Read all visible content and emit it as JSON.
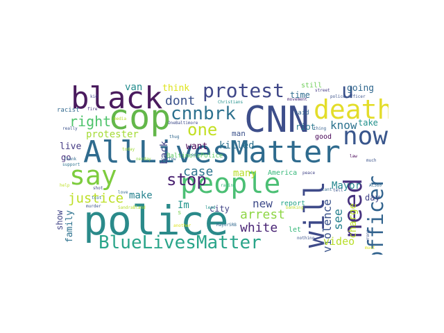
{
  "words": [
    {
      "id": "alllivesmatter",
      "text": "AllLivesMatter",
      "color": "#2f6b8e"
    },
    {
      "id": "police",
      "text": "police",
      "color": "#2a8a8a"
    },
    {
      "id": "cnn",
      "text": "CNN",
      "color": "#3d4e8a"
    },
    {
      "id": "cop",
      "text": "cop",
      "color": "#63b74a"
    },
    {
      "id": "black",
      "text": "black",
      "color": "#4a1b5e"
    },
    {
      "id": "people",
      "text": "people",
      "color": "#4bbf74"
    },
    {
      "id": "death",
      "text": "death",
      "color": "#e3dd2a"
    },
    {
      "id": "say",
      "text": "say",
      "color": "#7dcc3e"
    },
    {
      "id": "now",
      "text": "now",
      "color": "#39568c"
    },
    {
      "id": "will",
      "text": "will",
      "color": "#3e4a89"
    },
    {
      "id": "need",
      "text": "need",
      "color": "#46327e"
    },
    {
      "id": "officer",
      "text": "officer",
      "color": "#30628d"
    },
    {
      "id": "bluelivesmatter",
      "text": "BlueLivesMatter",
      "color": "#2aa58a"
    },
    {
      "id": "protest",
      "text": "protest",
      "color": "#3f4788"
    },
    {
      "id": "cnnbrk",
      "text": "cnnbrk",
      "color": "#2d718e"
    },
    {
      "id": "u",
      "text": "u",
      "color": "#3b528b"
    },
    {
      "id": "stop",
      "text": "stop",
      "color": "#481f70"
    },
    {
      "id": "one",
      "text": "one",
      "color": "#c2df23"
    },
    {
      "id": "right",
      "text": "right",
      "color": "#4ec36b"
    },
    {
      "id": "dont",
      "text": "dont",
      "color": "#3b528b"
    },
    {
      "id": "case",
      "text": "case",
      "color": "#2c738e"
    },
    {
      "id": "justice",
      "text": "justice",
      "color": "#bddf26"
    },
    {
      "id": "arrest",
      "text": "arrest",
      "color": "#8ed645"
    },
    {
      "id": "white",
      "text": "white",
      "color": "#482374"
    },
    {
      "id": "new",
      "text": "new",
      "color": "#3e4a89"
    },
    {
      "id": "see",
      "text": "see",
      "color": "#26818e"
    },
    {
      "id": "know",
      "text": "know",
      "color": "#2c728e"
    },
    {
      "id": "violence",
      "text": "violence",
      "color": "#3a538b"
    },
    {
      "id": "charge",
      "text": "charge",
      "color": "#bddf26"
    },
    {
      "id": "video",
      "text": "video",
      "color": "#b8de29"
    },
    {
      "id": "mayor",
      "text": "Mayor",
      "color": "#24868e"
    },
    {
      "id": "protester",
      "text": "protester",
      "color": "#a5db36"
    },
    {
      "id": "make",
      "text": "make",
      "color": "#26828e"
    },
    {
      "id": "im",
      "text": "Im",
      "color": "#1f948c"
    },
    {
      "id": "killed",
      "text": "killed",
      "color": "#2c728e"
    },
    {
      "id": "many",
      "text": "many",
      "color": "#b8de29"
    },
    {
      "id": "back",
      "text": "back",
      "color": "#414487"
    },
    {
      "id": "want",
      "text": "want",
      "color": "#440154"
    },
    {
      "id": "live",
      "text": "live",
      "color": "#443a83"
    },
    {
      "id": "go",
      "text": "go",
      "color": "#472c7a"
    },
    {
      "id": "city",
      "text": "city",
      "color": "#414487"
    },
    {
      "id": "family",
      "text": "family",
      "color": "#2c718e"
    },
    {
      "id": "show",
      "text": "show",
      "color": "#414487"
    },
    {
      "id": "van",
      "text": "van",
      "color": "#228c8d"
    },
    {
      "id": "think",
      "text": "think",
      "color": "#dde318"
    },
    {
      "id": "time",
      "text": "time",
      "color": "#2f6c8e"
    },
    {
      "id": "going",
      "text": "going",
      "color": "#31688e"
    },
    {
      "id": "take",
      "text": "take",
      "color": "#21918c"
    },
    {
      "id": "day",
      "text": "day",
      "color": "#414487"
    },
    {
      "id": "riot",
      "text": "riot",
      "color": "#2a788e"
    },
    {
      "id": "man",
      "text": "man",
      "color": "#3b528b"
    },
    {
      "id": "good",
      "text": "good",
      "color": "#440154"
    },
    {
      "id": "report",
      "text": "report",
      "color": "#20a386"
    },
    {
      "id": "let",
      "text": "let",
      "color": "#35b779"
    },
    {
      "id": "america",
      "text": "America",
      "color": "#35b779"
    },
    {
      "id": "said",
      "text": "said",
      "color": "#33638d"
    },
    {
      "id": "still",
      "text": "still",
      "color": "#6ece58"
    },
    {
      "id": "racist",
      "text": "racist",
      "color": "#31688e"
    },
    {
      "id": "baltimorepolice",
      "text": "BaltimorePolice",
      "color": "#5ec962"
    },
    {
      "id": "onebaltimore",
      "text": "OneBaltimore",
      "color": "#3e4a89"
    },
    {
      "id": "police_officer",
      "text": "police officer",
      "color": "#3b528b"
    },
    {
      "id": "street",
      "text": "street",
      "color": "#443983"
    },
    {
      "id": "ac360",
      "text": "AC360",
      "color": "#31688e"
    },
    {
      "id": "thing",
      "text": "thing",
      "color": "#35608d"
    },
    {
      "id": "tell",
      "text": "tell",
      "color": "#3b528b"
    },
    {
      "id": "s",
      "text": "s",
      "color": "#7ad151"
    },
    {
      "id": "kid",
      "text": "kid",
      "color": "#414487"
    },
    {
      "id": "fire",
      "text": "fire",
      "color": "#472d7b"
    },
    {
      "id": "really",
      "text": "really",
      "color": "#3b528b"
    },
    {
      "id": "support",
      "text": "support",
      "color": "#2c728e"
    },
    {
      "id": "thank",
      "text": "Thank",
      "color": "#31688e"
    },
    {
      "id": "murder",
      "text": "murder",
      "color": "#3b528b"
    },
    {
      "id": "shot",
      "text": "shot",
      "color": "#404688"
    },
    {
      "id": "tcot",
      "text": "tcot",
      "color": "#2c728e"
    },
    {
      "id": "love",
      "text": "love",
      "color": "#31688e"
    },
    {
      "id": "curfew",
      "text": "curfew",
      "color": "#31688e"
    },
    {
      "id": "peace",
      "text": "peace",
      "color": "#414487"
    },
    {
      "id": "much",
      "text": "much",
      "color": "#3b528b"
    },
    {
      "id": "law",
      "text": "law",
      "color": "#440154"
    },
    {
      "id": "nothing",
      "text": "nothing",
      "color": "#3b528b"
    },
    {
      "id": "cant",
      "text": "cant",
      "color": "#31688e"
    },
    {
      "id": "wrong",
      "text": "wrong",
      "color": "#3b528b"
    },
    {
      "id": "movement",
      "text": "movement",
      "color": "#482777"
    },
    {
      "id": "christians",
      "text": "Christians",
      "color": "#21918c"
    },
    {
      "id": "mayorsrb",
      "text": "MayorSRB",
      "color": "#31688e"
    },
    {
      "id": "today",
      "text": "today",
      "color": "#a0da39"
    },
    {
      "id": "help",
      "text": "help",
      "color": "#bddf26"
    },
    {
      "id": "media",
      "text": "media",
      "color": "#b5de2b"
    },
    {
      "id": "sandrabland",
      "text": "SandraBland",
      "color": "#b5de2b"
    },
    {
      "id": "nerday",
      "text": "nerday",
      "color": "#8fd744"
    },
    {
      "id": "racing",
      "text": "racing",
      "color": "#35b779"
    },
    {
      "id": "banking",
      "text": "banking",
      "color": "#b8de29"
    },
    {
      "id": "another",
      "text": "another",
      "color": "#dde318"
    },
    {
      "id": "must",
      "text": "must",
      "color": "#d8e219"
    },
    {
      "id": "thug",
      "text": "thug",
      "color": "#31688e"
    },
    {
      "id": "look",
      "text": "look",
      "color": "#2c728e"
    },
    {
      "id": "lead",
      "text": "lead",
      "color": "#21918c"
    }
  ]
}
